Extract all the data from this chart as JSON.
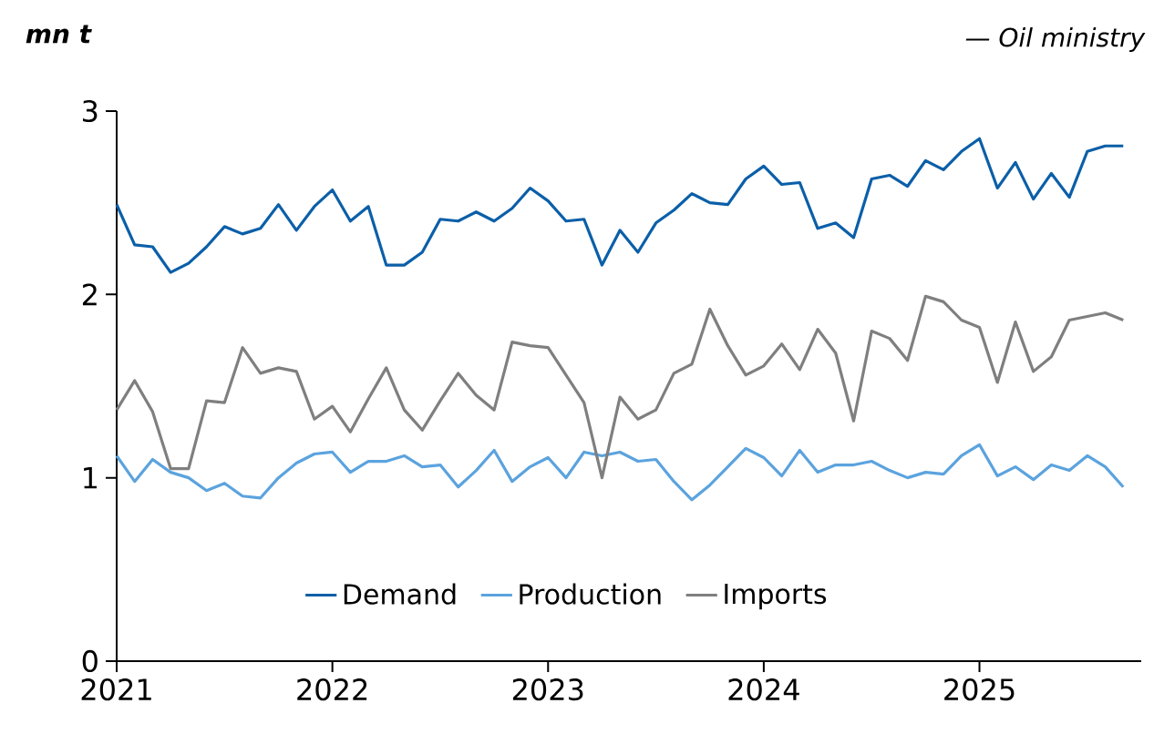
{
  "chart_data": {
    "type": "line",
    "ylabel": "mn t",
    "annotations": [
      "— Oil ministry"
    ],
    "x": [
      "2021-01",
      "2021-02",
      "2021-03",
      "2021-04",
      "2021-05",
      "2021-06",
      "2021-07",
      "2021-08",
      "2021-09",
      "2021-10",
      "2021-11",
      "2021-12",
      "2022-01",
      "2022-02",
      "2022-03",
      "2022-04",
      "2022-05",
      "2022-06",
      "2022-07",
      "2022-08",
      "2022-09",
      "2022-10",
      "2022-11",
      "2022-12",
      "2023-01",
      "2023-02",
      "2023-03",
      "2023-04",
      "2023-05",
      "2023-06",
      "2023-07",
      "2023-08",
      "2023-09",
      "2023-10",
      "2023-11",
      "2023-12",
      "2024-01",
      "2024-02",
      "2024-03",
      "2024-04",
      "2024-05",
      "2024-06",
      "2024-07",
      "2024-08",
      "2024-09",
      "2024-10",
      "2024-11",
      "2024-12",
      "2025-01",
      "2025-02",
      "2025-03",
      "2025-04",
      "2025-05",
      "2025-06",
      "2025-07",
      "2025-08",
      "2025-09"
    ],
    "series": [
      {
        "name": "Demand",
        "color": "#0b5fa8",
        "values": [
          2.49,
          2.27,
          2.26,
          2.12,
          2.17,
          2.26,
          2.37,
          2.33,
          2.36,
          2.49,
          2.35,
          2.48,
          2.57,
          2.4,
          2.48,
          2.16,
          2.16,
          2.23,
          2.41,
          2.4,
          2.45,
          2.4,
          2.47,
          2.58,
          2.51,
          2.4,
          2.41,
          2.16,
          2.35,
          2.23,
          2.39,
          2.46,
          2.55,
          2.5,
          2.49,
          2.63,
          2.7,
          2.6,
          2.61,
          2.36,
          2.39,
          2.31,
          2.63,
          2.65,
          2.59,
          2.73,
          2.68,
          2.78,
          2.85,
          2.58,
          2.72,
          2.52,
          2.66,
          2.53,
          2.78,
          2.81,
          2.81
        ]
      },
      {
        "name": "Production",
        "color": "#5ba3de",
        "values": [
          1.12,
          0.98,
          1.1,
          1.03,
          1.0,
          0.93,
          0.97,
          0.9,
          0.89,
          1.0,
          1.08,
          1.13,
          1.14,
          1.03,
          1.09,
          1.09,
          1.12,
          1.06,
          1.07,
          0.95,
          1.04,
          1.15,
          0.98,
          1.06,
          1.11,
          1.0,
          1.14,
          1.12,
          1.14,
          1.09,
          1.1,
          0.98,
          0.88,
          0.96,
          1.06,
          1.16,
          1.11,
          1.01,
          1.15,
          1.03,
          1.07,
          1.07,
          1.09,
          1.04,
          1.0,
          1.03,
          1.02,
          1.12,
          1.18,
          1.01,
          1.06,
          0.99,
          1.07,
          1.04,
          1.12,
          1.06,
          0.95
        ]
      },
      {
        "name": "Imports",
        "color": "#7f7f7f",
        "values": [
          1.37,
          1.53,
          1.36,
          1.05,
          1.05,
          1.42,
          1.41,
          1.71,
          1.57,
          1.6,
          1.58,
          1.32,
          1.39,
          1.25,
          1.43,
          1.6,
          1.37,
          1.26,
          1.42,
          1.57,
          1.45,
          1.37,
          1.74,
          1.72,
          1.71,
          1.56,
          1.41,
          1.0,
          1.44,
          1.32,
          1.37,
          1.57,
          1.62,
          1.92,
          1.72,
          1.56,
          1.61,
          1.73,
          1.59,
          1.81,
          1.68,
          1.31,
          1.8,
          1.76,
          1.64,
          1.99,
          1.96,
          1.86,
          1.82,
          1.52,
          1.85,
          1.58,
          1.66,
          1.86,
          1.88,
          1.9,
          1.86
        ]
      }
    ],
    "xlim": [
      "2021-01",
      "2025-10"
    ],
    "xticks": [
      "2021",
      "2022",
      "2023",
      "2024",
      "2025"
    ],
    "ylim": [
      0,
      3
    ],
    "yticks": [
      0,
      1,
      2,
      3
    ],
    "legend": "bottom",
    "grid": false,
    "marker": "none",
    "line_style": "solid"
  }
}
